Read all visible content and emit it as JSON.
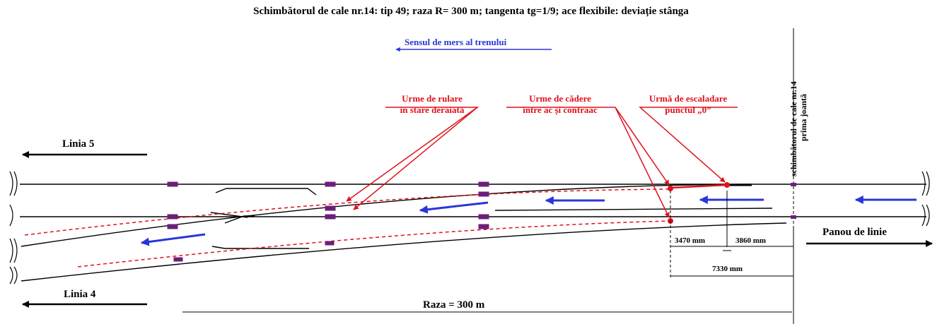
{
  "title": "Schimbătorul de cale nr.14: tip 49; raza R= 300 m; tangenta tg=1/9; ace flexibile: deviație stânga",
  "direction_label": "Sensul de mers al trenului",
  "annotations": {
    "rolling_marks": {
      "line1": "Urme de rulare",
      "line2": "în stare deraiată"
    },
    "fall_marks": {
      "line1": "Urme de cădere",
      "line2": "între ac și contraac"
    },
    "climb_mark": {
      "line1": "Urmă de escaladare",
      "line2": "punctul „0”"
    }
  },
  "switch_label": {
    "line1": "schimbătorul de cale nr.14",
    "line2": "prima joantă"
  },
  "lines": {
    "line5": "Linia 5",
    "line4": "Linia 4",
    "panel": "Panou de linie"
  },
  "dimensions": {
    "d1": "3470 mm",
    "d2": "3860 mm",
    "total": "7330 mm"
  },
  "radius_label": "Raza = 300 m",
  "colors": {
    "track": "#000000",
    "marks": "#e0111b",
    "arrows": "#2a36d8",
    "sleepers": "#6b1f7a"
  }
}
